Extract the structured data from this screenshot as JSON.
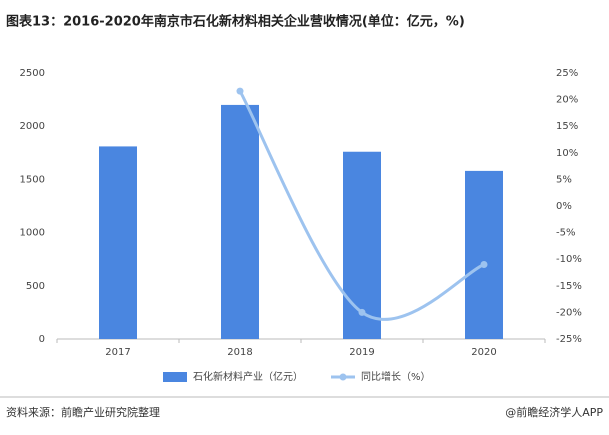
{
  "chart_data": {
    "type": "bar-line",
    "title": "图表13：2016-2020年南京市石化新材料相关企业营收情况(单位：亿元，%)",
    "categories": [
      "2017",
      "2018",
      "2019",
      "2020"
    ],
    "series": [
      {
        "name": "石化新材料产业（亿元）",
        "color": "#4a86e0",
        "type": "bar",
        "values": [
          1810,
          2200,
          1760,
          1580
        ]
      },
      {
        "name": "同比增长（%）",
        "color": "#9dc3ef",
        "type": "line",
        "axis": "y2",
        "values": [
          null,
          21.6,
          -20,
          -11
        ]
      }
    ],
    "ylim": [
      0,
      2500
    ],
    "yticks": [
      0,
      500,
      1000,
      1500,
      2000,
      2500
    ],
    "y2lim": [
      -25,
      25
    ],
    "y2ticks": [
      {
        "value": -25,
        "label": "-25%"
      },
      {
        "value": -20,
        "label": "-20%"
      },
      {
        "value": -15,
        "label": "-15%"
      },
      {
        "value": -10,
        "label": "-10%"
      },
      {
        "value": -5,
        "label": "-5%"
      },
      {
        "value": 0,
        "label": "0%"
      },
      {
        "value": 5,
        "label": "5%"
      },
      {
        "value": 10,
        "label": "10%"
      },
      {
        "value": 15,
        "label": "15%"
      },
      {
        "value": 20,
        "label": "20%"
      },
      {
        "value": 25,
        "label": "25%"
      }
    ],
    "grid": false,
    "legend": "bottom",
    "source": "资料来源：前瞻产业研究院整理",
    "credit": "@前瞻经济学人APP"
  }
}
